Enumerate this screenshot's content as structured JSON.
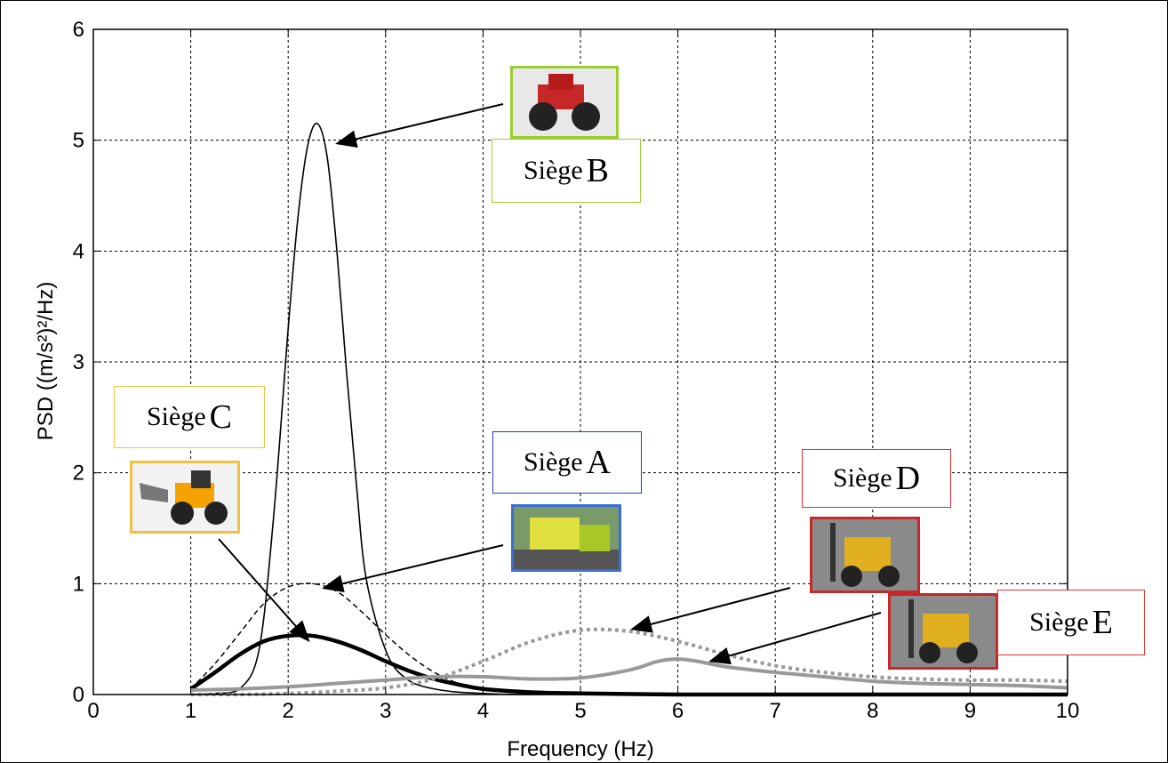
{
  "chart_data": {
    "type": "line",
    "xlabel": "Frequency (Hz)",
    "ylabel": "PSD ((m/s²)²/Hz)",
    "xlim": [
      0,
      10
    ],
    "ylim": [
      0,
      6
    ],
    "xticks": [
      "0",
      "1",
      "2",
      "3",
      "4",
      "5",
      "6",
      "7",
      "8",
      "9",
      "10"
    ],
    "yticks": [
      "0",
      "1",
      "2",
      "3",
      "4",
      "5",
      "6"
    ],
    "grid": true,
    "series": [
      {
        "name": "Siège A",
        "x": [
          1.0,
          1.25,
          1.5,
          1.75,
          2.0,
          2.25,
          2.5,
          2.75,
          3.0,
          3.25,
          3.5,
          3.75,
          4.0,
          4.5,
          5.0,
          6.0,
          7.0,
          8.0,
          9.0,
          10.0
        ],
        "y": [
          0.05,
          0.28,
          0.55,
          0.82,
          0.97,
          1.0,
          0.93,
          0.75,
          0.54,
          0.35,
          0.2,
          0.1,
          0.05,
          0.02,
          0.01,
          0.005,
          0.0,
          0.0,
          0.0,
          0.0
        ]
      },
      {
        "name": "Siège B",
        "x": [
          1.0,
          1.25,
          1.5,
          1.7,
          1.85,
          2.0,
          2.1,
          2.2,
          2.3,
          2.4,
          2.5,
          2.6,
          2.7,
          2.8,
          3.0,
          3.2,
          3.5,
          4.0,
          5.0,
          10.0
        ],
        "y": [
          0.0,
          0.01,
          0.05,
          0.4,
          1.6,
          3.3,
          4.3,
          4.95,
          5.15,
          4.85,
          4.0,
          2.9,
          1.9,
          1.05,
          0.4,
          0.15,
          0.05,
          0.01,
          0.0,
          0.0
        ]
      },
      {
        "name": "Siège C",
        "x": [
          1.0,
          1.25,
          1.5,
          1.75,
          2.0,
          2.25,
          2.5,
          2.75,
          3.0,
          3.25,
          3.5,
          3.75,
          4.0,
          4.5,
          5.0,
          6.0,
          7.0,
          8.0,
          9.0,
          10.0
        ],
        "y": [
          0.05,
          0.2,
          0.36,
          0.48,
          0.53,
          0.53,
          0.48,
          0.4,
          0.3,
          0.21,
          0.14,
          0.09,
          0.05,
          0.02,
          0.01,
          0.0,
          0.0,
          0.0,
          0.0,
          0.0
        ]
      },
      {
        "name": "Siège D",
        "x": [
          1.0,
          1.5,
          2.0,
          2.5,
          3.0,
          3.5,
          4.0,
          4.5,
          5.0,
          5.5,
          6.0,
          6.5,
          7.0,
          7.5,
          8.0,
          8.5,
          9.0,
          9.5,
          10.0
        ],
        "y": [
          0.0,
          0.0,
          0.01,
          0.03,
          0.06,
          0.14,
          0.3,
          0.48,
          0.58,
          0.57,
          0.48,
          0.36,
          0.26,
          0.2,
          0.16,
          0.14,
          0.13,
          0.13,
          0.12
        ]
      },
      {
        "name": "Siège E",
        "x": [
          1.0,
          1.5,
          2.0,
          2.5,
          3.0,
          3.5,
          4.0,
          4.5,
          5.0,
          5.5,
          5.8,
          6.0,
          6.2,
          6.5,
          7.0,
          7.5,
          8.0,
          8.5,
          9.0,
          9.5,
          10.0
        ],
        "y": [
          0.04,
          0.05,
          0.07,
          0.1,
          0.13,
          0.16,
          0.16,
          0.14,
          0.15,
          0.22,
          0.3,
          0.32,
          0.3,
          0.25,
          0.2,
          0.16,
          0.12,
          0.1,
          0.09,
          0.08,
          0.06
        ]
      }
    ]
  },
  "annotations": [
    {
      "prefix": "Siège",
      "letter": "B",
      "border": "#9acd32"
    },
    {
      "prefix": "Siège",
      "letter": "C",
      "border": "#f0c040"
    },
    {
      "prefix": "Siège",
      "letter": "A",
      "border": "#2040c0"
    },
    {
      "prefix": "Siège",
      "letter": "D",
      "border": "#e03030"
    },
    {
      "prefix": "Siège",
      "letter": "E",
      "border": "#e03030"
    }
  ]
}
